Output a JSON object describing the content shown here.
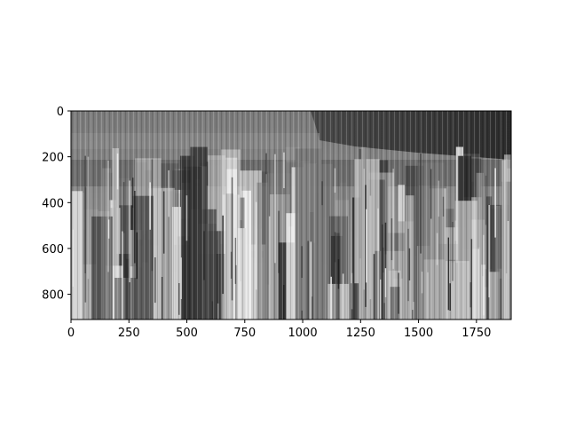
{
  "figure": {
    "image": {
      "description_icon": "blurred-cityscape-image",
      "colormap": "gray",
      "extent_x": [
        0,
        1900
      ],
      "extent_y": [
        0,
        910
      ]
    },
    "x_axis": {
      "ticks": [
        {
          "value": 0,
          "label": "0"
        },
        {
          "value": 250,
          "label": "250"
        },
        {
          "value": 500,
          "label": "500"
        },
        {
          "value": 750,
          "label": "750"
        },
        {
          "value": 1000,
          "label": "1000"
        },
        {
          "value": 1250,
          "label": "1250"
        },
        {
          "value": 1500,
          "label": "1500"
        },
        {
          "value": 1750,
          "label": "1750"
        }
      ]
    },
    "y_axis": {
      "inverted": true,
      "ticks": [
        {
          "value": 0,
          "label": "0"
        },
        {
          "value": 200,
          "label": "200"
        },
        {
          "value": 400,
          "label": "400"
        },
        {
          "value": 600,
          "label": "600"
        },
        {
          "value": 800,
          "label": "800"
        }
      ]
    }
  }
}
